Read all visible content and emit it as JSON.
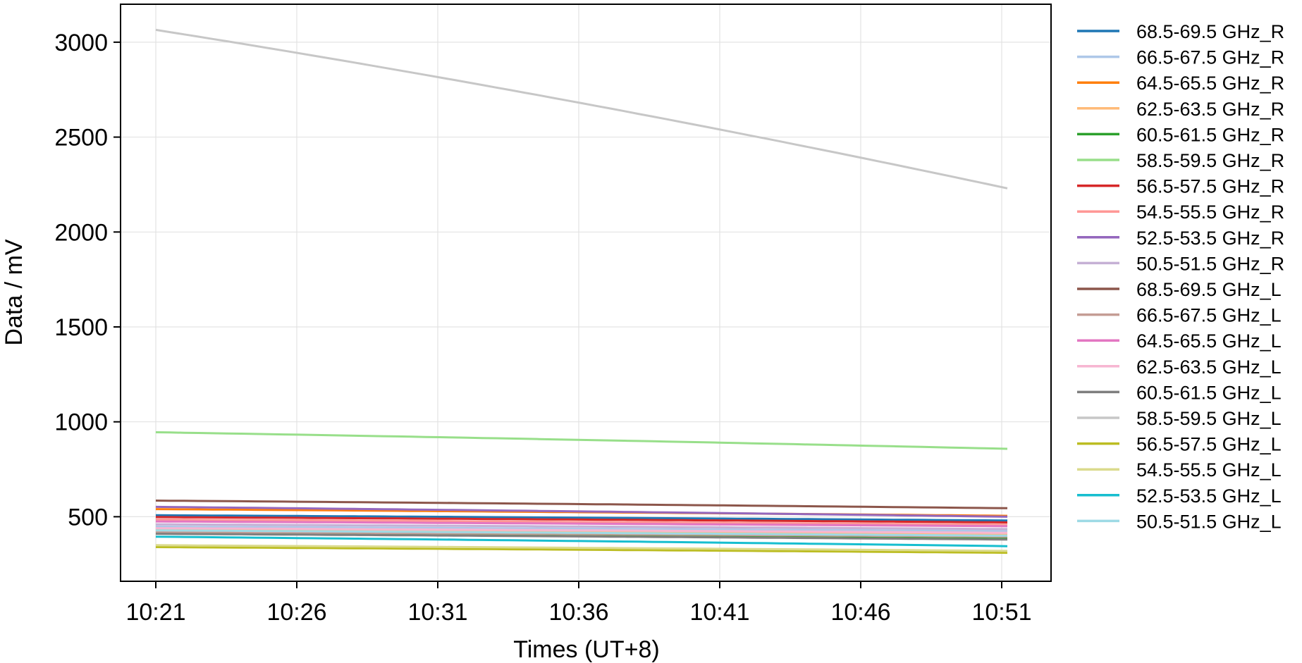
{
  "chart_data": {
    "type": "line",
    "xlabel": "Times (UT+8)",
    "ylabel": "Data / mV",
    "x_ticks": [
      "10:21",
      "10:26",
      "10:31",
      "10:36",
      "10:41",
      "10:46",
      "10:51"
    ],
    "x_range_minutes": [
      0,
      30.2
    ],
    "xlim_minutes": [
      -1.25,
      31.75
    ],
    "ylim": [
      160,
      3200
    ],
    "y_ticks": [
      500,
      1000,
      1500,
      2000,
      2500,
      3000
    ],
    "grid": true,
    "legend_position": "outside-right",
    "series": [
      {
        "name": "68.5-69.5 GHz_R",
        "color": "#1f77b4",
        "start": 508,
        "end": 480
      },
      {
        "name": "66.5-67.5 GHz_R",
        "color": "#aec7e8",
        "start": 448,
        "end": 425
      },
      {
        "name": "64.5-65.5 GHz_R",
        "color": "#ff7f0e",
        "start": 540,
        "end": 505
      },
      {
        "name": "62.5-63.5 GHz_R",
        "color": "#ffbb78",
        "start": 430,
        "end": 405
      },
      {
        "name": "60.5-61.5 GHz_R",
        "color": "#2ca02c",
        "start": 415,
        "end": 390
      },
      {
        "name": "58.5-59.5 GHz_R",
        "color": "#98df8a",
        "start": 945,
        "end": 858
      },
      {
        "name": "56.5-57.5 GHz_R",
        "color": "#d62728",
        "start": 498,
        "end": 470
      },
      {
        "name": "54.5-55.5 GHz_R",
        "color": "#ff9896",
        "start": 485,
        "end": 458
      },
      {
        "name": "52.5-53.5 GHz_R",
        "color": "#9467bd",
        "start": 552,
        "end": 500
      },
      {
        "name": "50.5-51.5 GHz_R",
        "color": "#c5b0d5",
        "start": 460,
        "end": 435
      },
      {
        "name": "68.5-69.5 GHz_L",
        "color": "#8c564b",
        "start": 585,
        "end": 545
      },
      {
        "name": "66.5-67.5 GHz_L",
        "color": "#c49c94",
        "start": 420,
        "end": 395
      },
      {
        "name": "64.5-65.5 GHz_L",
        "color": "#e377c2",
        "start": 475,
        "end": 450
      },
      {
        "name": "62.5-63.5 GHz_L",
        "color": "#f7b6d2",
        "start": 440,
        "end": 415
      },
      {
        "name": "60.5-61.5 GHz_L",
        "color": "#7f7f7f",
        "start": 410,
        "end": 380
      },
      {
        "name": "58.5-59.5 GHz_L",
        "color": "#c7c7c7",
        "start": 3065,
        "end": 2230
      },
      {
        "name": "56.5-57.5 GHz_L",
        "color": "#bcbd22",
        "start": 340,
        "end": 310
      },
      {
        "name": "54.5-55.5 GHz_L",
        "color": "#dbdb8d",
        "start": 350,
        "end": 320
      },
      {
        "name": "52.5-53.5 GHz_L",
        "color": "#17becf",
        "start": 395,
        "end": 345
      },
      {
        "name": "50.5-51.5 GHz_L",
        "color": "#9edae5",
        "start": 428,
        "end": 400
      }
    ]
  }
}
